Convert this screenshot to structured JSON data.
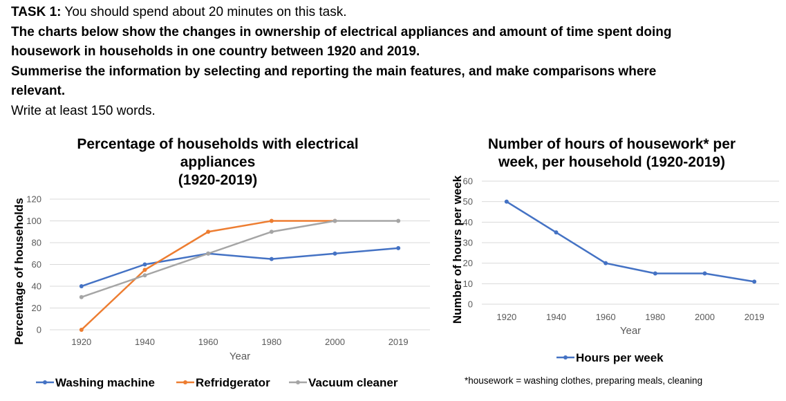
{
  "task": {
    "label": "TASK 1:",
    "time_note": " You should spend about 20 minutes on this task.",
    "prompt_line1": "The charts below show the changes in ownership of electrical appliances and amount of time spent doing",
    "prompt_line2": "housework in households in one country between 1920 and 2019.",
    "prompt_line3": "Summerise the information by selecting and reporting the main features, and make comparisons where",
    "prompt_line4": "relevant.",
    "word_count": "Write at least 150 words."
  },
  "footnote": "*housework = washing clothes, preparing meals, cleaning",
  "chart_data": [
    {
      "type": "line",
      "title_lines": [
        "Percentage of households with electrical",
        "appliances",
        "(1920-2019)"
      ],
      "xlabel": "Year",
      "ylabel": "Percentage of households",
      "categories": [
        "1920",
        "1940",
        "1960",
        "1980",
        "2000",
        "2019"
      ],
      "ylim": [
        0,
        120
      ],
      "yticks": [
        0,
        20,
        40,
        60,
        80,
        100,
        120
      ],
      "grid": true,
      "legend_position": "bottom",
      "series": [
        {
          "name": "Washing machine",
          "color": "#4472c4",
          "values": [
            40,
            60,
            70,
            65,
            70,
            75
          ]
        },
        {
          "name": "Refridgerator",
          "color": "#ed7d31",
          "values": [
            0,
            55,
            90,
            100,
            100,
            null
          ]
        },
        {
          "name": "Vacuum cleaner",
          "color": "#a5a5a5",
          "values": [
            30,
            50,
            70,
            90,
            100,
            100
          ]
        }
      ]
    },
    {
      "type": "line",
      "title_lines": [
        "Number of hours of housework* per",
        "week, per household (1920-2019)"
      ],
      "xlabel": "Year",
      "ylabel": "Number of hours per week",
      "categories": [
        "1920",
        "1940",
        "1960",
        "1980",
        "2000",
        "2019"
      ],
      "ylim": [
        0,
        60
      ],
      "yticks": [
        0,
        10,
        20,
        30,
        40,
        50,
        60
      ],
      "grid": true,
      "legend_position": "bottom",
      "series": [
        {
          "name": "Hours per week",
          "color": "#4472c4",
          "values": [
            50,
            35,
            20,
            15,
            15,
            11
          ]
        }
      ]
    }
  ]
}
